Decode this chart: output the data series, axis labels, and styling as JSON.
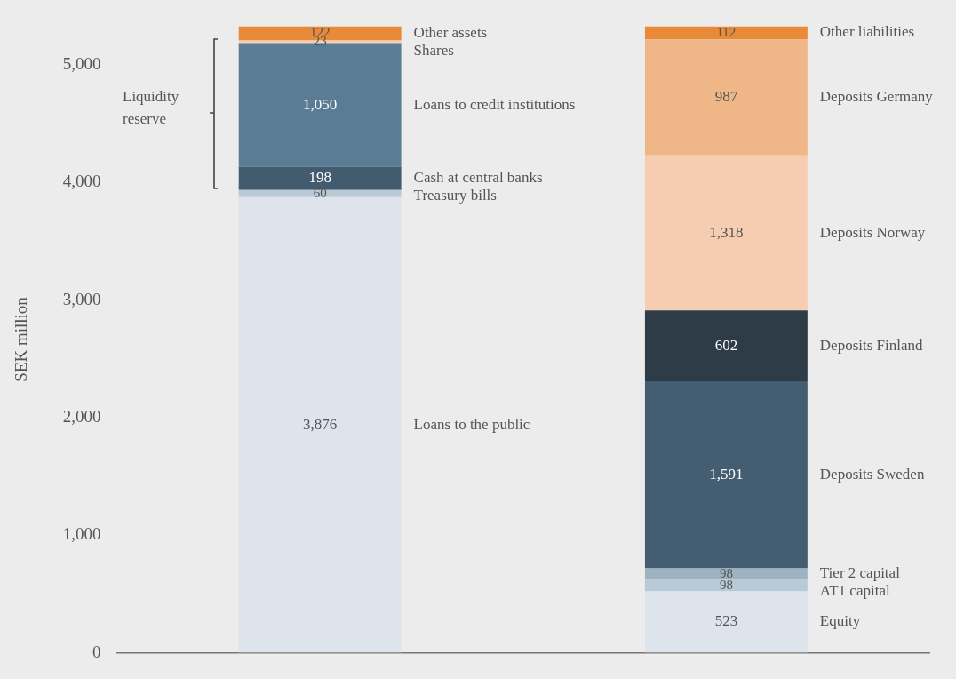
{
  "chart_data": {
    "type": "bar",
    "stacked": true,
    "categories": [
      null,
      null
    ],
    "ylabel": "SEK million",
    "ylim": [
      0,
      5329
    ],
    "yticks": [
      0,
      {
        "value": 1000,
        "label": "1,000"
      },
      {
        "value": 2000,
        "label": "2,000"
      },
      {
        "value": 3000,
        "label": "3,000"
      },
      {
        "value": 4000,
        "label": "4,000"
      },
      {
        "value": 5000,
        "label": "5,000"
      }
    ],
    "grid": false,
    "legend": false,
    "annotations": [
      "Liquidity reserve"
    ],
    "series": [
      {
        "name": "Loans to the public",
        "color": "#dde4ec",
        "values": [
          3876,
          null
        ],
        "value_labels": [
          "3,876",
          null
        ]
      },
      {
        "name": "Treasury bills",
        "color": "#b8cad6",
        "values": [
          60,
          null
        ],
        "value_labels": [
          "60",
          null
        ]
      },
      {
        "name": "Cash at central banks",
        "color": "#425b6e",
        "values": [
          198,
          null
        ],
        "value_labels": [
          "198",
          null
        ]
      },
      {
        "name": "Loans to credit institutions",
        "color": "#5a7c94",
        "values": [
          1050,
          null
        ],
        "value_labels": [
          "1,050",
          null
        ]
      },
      {
        "name": "Shares",
        "color": "#f6cdb0",
        "values": [
          23,
          null
        ],
        "value_labels": [
          "23",
          null
        ]
      },
      {
        "name": "Other assets",
        "color": "#e88a38",
        "values": [
          122,
          null
        ],
        "value_labels": [
          "122",
          null
        ]
      },
      {
        "name": "Equity",
        "color": "#dde4ec",
        "values": [
          null,
          523
        ],
        "value_labels": [
          null,
          "523"
        ]
      },
      {
        "name": "AT1 capital",
        "color": "#b8cad6",
        "values": [
          null,
          98
        ],
        "value_labels": [
          null,
          "98"
        ]
      },
      {
        "name": "Tier 2 capital",
        "color": "#9db3c2",
        "values": [
          null,
          98
        ],
        "value_labels": [
          null,
          "98"
        ]
      },
      {
        "name": "Deposits Sweden",
        "color": "#445d70",
        "values": [
          null,
          1591
        ],
        "value_labels": [
          null,
          "1,591"
        ]
      },
      {
        "name": "Deposits Finland",
        "color": "#2d3c47",
        "values": [
          null,
          602
        ],
        "value_labels": [
          null,
          "602"
        ]
      },
      {
        "name": "Deposits Norway",
        "color": "#f6cdb0",
        "values": [
          null,
          1318
        ],
        "value_labels": [
          null,
          "1,318"
        ]
      },
      {
        "name": "Deposits Germany",
        "color": "#efb687",
        "values": [
          null,
          987
        ],
        "value_labels": [
          null,
          "987"
        ]
      },
      {
        "name": "Other liabilities",
        "color": "#e88a38",
        "values": [
          null,
          112
        ],
        "value_labels": [
          null,
          "112"
        ]
      }
    ]
  }
}
